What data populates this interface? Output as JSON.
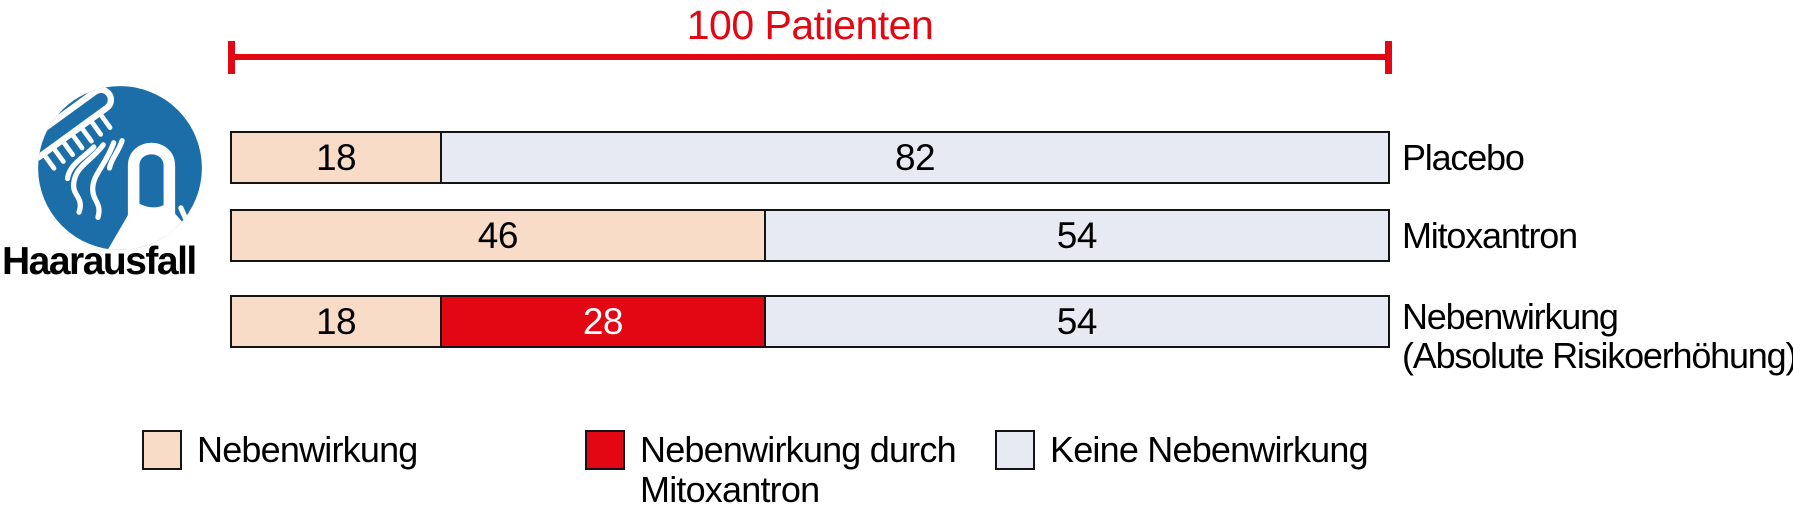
{
  "header": {
    "title": "100 Patienten"
  },
  "icon": {
    "name": "hair-loss-icon",
    "label": "Haarausfall"
  },
  "colors": {
    "accent_red": "#E30613",
    "border": "#141414",
    "icon_blue": "#1C6EA8",
    "side_effect": {
      "fill": "#F9DCC7",
      "text": "#000000"
    },
    "drug_side_effect": {
      "fill": "#E30613",
      "text": "#FFFFFF"
    },
    "no_side_effect": {
      "fill": "#E7EAF3",
      "text": "#000000"
    }
  },
  "chart_data": {
    "type": "bar",
    "orientation": "horizontal-stacked",
    "title": "100 Patienten",
    "total_per_row": 100,
    "xlim": [
      0,
      100
    ],
    "grid": false,
    "legend_position": "bottom",
    "rows": [
      {
        "label_lines": [
          "Placebo"
        ],
        "segments": [
          {
            "value": 18,
            "color_key": "side_effect"
          },
          {
            "value": 82,
            "color_key": "no_side_effect"
          }
        ]
      },
      {
        "label_lines": [
          "Mitoxantron"
        ],
        "segments": [
          {
            "value": 46,
            "color_key": "side_effect"
          },
          {
            "value": 54,
            "color_key": "no_side_effect"
          }
        ]
      },
      {
        "label_lines": [
          "Nebenwirkung",
          "(Absolute Risikoerhöhung)"
        ],
        "segments": [
          {
            "value": 18,
            "color_key": "side_effect"
          },
          {
            "value": 28,
            "color_key": "drug_side_effect"
          },
          {
            "value": 54,
            "color_key": "no_side_effect"
          }
        ]
      }
    ],
    "legend": [
      {
        "label_lines": [
          "Nebenwirkung"
        ],
        "color_key": "side_effect"
      },
      {
        "label_lines": [
          "Nebenwirkung durch",
          "Mitoxantron"
        ],
        "color_key": "drug_side_effect"
      },
      {
        "label_lines": [
          "Keine Nebenwirkung"
        ],
        "color_key": "no_side_effect"
      }
    ]
  }
}
